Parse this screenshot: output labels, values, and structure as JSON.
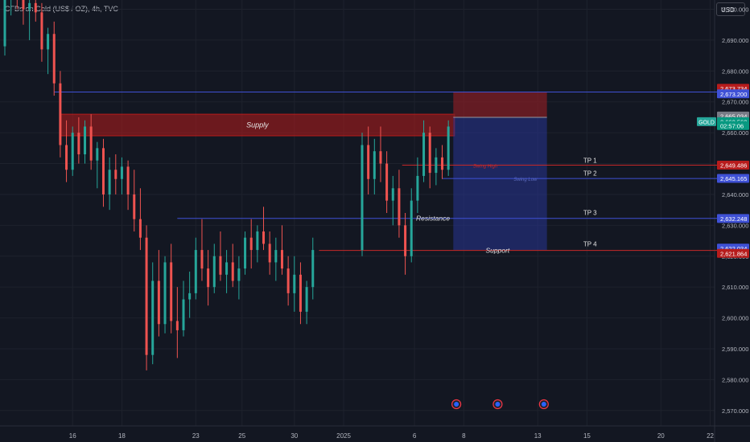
{
  "header": {
    "title": "CFDs on Gold (US$ / OZ), 4h, TVC",
    "currency_button": "USD"
  },
  "colors": {
    "background": "#131722",
    "bull": "#26a69a",
    "bear": "#ef5350",
    "supply_zone": "#b71c1c",
    "risk_zone": "#7f1d24",
    "reward_zone": "#283593",
    "blue_line": "#3f51d6",
    "red_line": "#c62828",
    "grid": "#1e222d",
    "axis_text": "#b2b5be"
  },
  "chart_data": {
    "type": "candlestick",
    "symbol": "GOLD",
    "timeframe": "4h",
    "ylim": [
      2565,
      2703
    ],
    "xlim": [
      0,
      116
    ],
    "y_ticks": [
      2570,
      2580,
      2590,
      2600,
      2610,
      2620,
      2630,
      2640,
      2650,
      2660,
      2670,
      2680,
      2690,
      2700
    ],
    "x_ticks": [
      {
        "label": "16",
        "x": 11
      },
      {
        "label": "18",
        "x": 19
      },
      {
        "label": "23",
        "x": 31
      },
      {
        "label": "25",
        "x": 38.5
      },
      {
        "label": "30",
        "x": 47
      },
      {
        "label": "2025",
        "x": 55
      },
      {
        "label": "6",
        "x": 66.5
      },
      {
        "label": "8",
        "x": 74.5
      },
      {
        "label": "13",
        "x": 86.5
      },
      {
        "label": "15",
        "x": 94.5
      },
      {
        "label": "20",
        "x": 106.5
      },
      {
        "label": "22",
        "x": 114.5
      }
    ],
    "candles": [
      [
        2688,
        2705,
        2685,
        2703
      ],
      [
        2703,
        2708,
        2698,
        2706
      ],
      [
        2706,
        2710,
        2700,
        2704
      ],
      [
        2704,
        2707,
        2695,
        2700
      ],
      [
        2700,
        2704,
        2690,
        2702
      ],
      [
        2702,
        2706,
        2696,
        2699
      ],
      [
        2699,
        2702,
        2683,
        2687
      ],
      [
        2687,
        2694,
        2679,
        2692
      ],
      [
        2692,
        2696,
        2672,
        2676
      ],
      [
        2676,
        2680,
        2652,
        2656
      ],
      [
        2656,
        2664,
        2644,
        2648
      ],
      [
        2648,
        2662,
        2646,
        2660
      ],
      [
        2660,
        2665,
        2650,
        2653
      ],
      [
        2653,
        2664,
        2650,
        2662
      ],
      [
        2662,
        2666,
        2648,
        2651
      ],
      [
        2651,
        2657,
        2642,
        2655
      ],
      [
        2655,
        2658,
        2636,
        2640
      ],
      [
        2640,
        2652,
        2635,
        2648
      ],
      [
        2648,
        2653,
        2640,
        2645
      ],
      [
        2645,
        2652,
        2640,
        2649
      ],
      [
        2649,
        2651,
        2635,
        2640
      ],
      [
        2640,
        2648,
        2628,
        2632
      ],
      [
        2632,
        2642,
        2622,
        2626
      ],
      [
        2626,
        2630,
        2583,
        2588
      ],
      [
        2588,
        2618,
        2585,
        2612
      ],
      [
        2612,
        2622,
        2594,
        2598
      ],
      [
        2598,
        2620,
        2595,
        2618
      ],
      [
        2618,
        2624,
        2595,
        2599
      ],
      [
        2599,
        2610,
        2587,
        2596
      ],
      [
        2596,
        2612,
        2594,
        2606
      ],
      [
        2606,
        2615,
        2600,
        2608
      ],
      [
        2608,
        2626,
        2606,
        2622
      ],
      [
        2622,
        2632,
        2612,
        2616
      ],
      [
        2616,
        2622,
        2604,
        2610
      ],
      [
        2610,
        2624,
        2608,
        2620
      ],
      [
        2620,
        2628,
        2612,
        2614
      ],
      [
        2614,
        2622,
        2608,
        2618
      ],
      [
        2618,
        2624,
        2610,
        2612
      ],
      [
        2612,
        2620,
        2606,
        2616
      ],
      [
        2616,
        2628,
        2614,
        2626
      ],
      [
        2626,
        2632,
        2616,
        2622
      ],
      [
        2622,
        2630,
        2618,
        2628
      ],
      [
        2628,
        2636,
        2622,
        2624
      ],
      [
        2624,
        2628,
        2614,
        2618
      ],
      [
        2618,
        2626,
        2612,
        2622
      ],
      [
        2622,
        2630,
        2614,
        2616
      ],
      [
        2616,
        2620,
        2604,
        2608
      ],
      [
        2608,
        2620,
        2602,
        2614
      ],
      [
        2614,
        2618,
        2598,
        2602
      ],
      [
        2602,
        2612,
        2598,
        2610
      ],
      [
        2610,
        2626,
        2606,
        2622
      ],
      [
        2622,
        2660,
        2620,
        2656
      ],
      [
        2656,
        2662,
        2640,
        2645
      ],
      [
        2645,
        2658,
        2640,
        2654
      ],
      [
        2654,
        2662,
        2644,
        2650
      ],
      [
        2650,
        2654,
        2634,
        2638
      ],
      [
        2638,
        2646,
        2630,
        2642
      ],
      [
        2642,
        2648,
        2626,
        2630
      ],
      [
        2630,
        2634,
        2614,
        2620
      ],
      [
        2620,
        2642,
        2618,
        2638
      ],
      [
        2638,
        2652,
        2634,
        2646
      ],
      [
        2646,
        2664,
        2644,
        2660
      ],
      [
        2660,
        2662,
        2642,
        2647
      ],
      [
        2647,
        2655,
        2643,
        2652
      ],
      [
        2652,
        2656,
        2645,
        2648
      ],
      [
        2648,
        2664,
        2646,
        2662
      ]
    ],
    "candle_x": [
      0,
      1,
      2,
      3,
      4,
      5,
      6,
      7,
      8,
      9,
      10,
      11,
      12,
      13,
      14,
      15,
      16,
      17,
      18,
      19,
      20,
      21,
      22,
      23,
      24,
      25,
      26,
      27,
      28,
      29,
      30,
      31,
      32,
      33,
      34,
      35,
      36,
      37,
      38,
      39,
      40,
      41,
      42,
      43,
      44,
      45,
      46,
      47,
      48,
      49,
      50,
      58,
      59,
      60,
      61,
      62,
      63,
      64,
      65,
      66,
      67,
      68,
      69,
      70,
      71,
      72
    ],
    "zones": [
      {
        "name": "Supply",
        "x0": 9,
        "x1": 73,
        "y0": 2659,
        "y1": 2666
      },
      {
        "name": "",
        "x0": 72.8,
        "x1": 88,
        "y0": 2665,
        "y1": 2673.2,
        "kind": "risk"
      },
      {
        "name": "",
        "x0": 72.8,
        "x1": 88,
        "y0": 2622,
        "y1": 2665,
        "kind": "reward"
      }
    ],
    "levels": [
      {
        "label": "",
        "y": 2673.2,
        "x0": 8,
        "x1": 116,
        "color": "#3f51d6"
      },
      {
        "label": "Swing High",
        "y": 2649.486,
        "x0": 64.5,
        "x1": 116,
        "color": "#c62828"
      },
      {
        "label": "Swing Low",
        "y": 2645.165,
        "x0": 71,
        "x1": 116,
        "color": "#3f51d6"
      },
      {
        "label": "Resistance",
        "y": 2632.248,
        "x0": 28,
        "x1": 116,
        "color": "#3f51d6"
      },
      {
        "label": "Support",
        "y": 2621.864,
        "x0": 51,
        "x1": 116,
        "color": "#c62828"
      }
    ],
    "tp_labels": [
      {
        "label": "TP 1",
        "y": 2650.3
      },
      {
        "label": "TP 2",
        "y": 2646.1
      },
      {
        "label": "TP 3",
        "y": 2633.4
      },
      {
        "label": "TP 4",
        "y": 2623.2
      }
    ],
    "price_tags": [
      {
        "value": "2,673.734",
        "y": 2674.4,
        "color": "#b71c1c"
      },
      {
        "value": "2,673.200",
        "y": 2672.6,
        "color": "#3f51d6"
      },
      {
        "value": "2,665.034",
        "y": 2665.4,
        "color": "#787b86"
      },
      {
        "value": "2,663.568",
        "y": 2663.6,
        "color": "#089981"
      },
      {
        "value": "02:57:06",
        "y": 2662.3,
        "color": "#089981"
      },
      {
        "value": "2,649.486",
        "y": 2649.5,
        "color": "#b71c1c"
      },
      {
        "value": "2,645.165",
        "y": 2645.2,
        "color": "#3f51d6"
      },
      {
        "value": "2,632.248",
        "y": 2632.2,
        "color": "#3f51d6"
      },
      {
        "value": "2,622.034",
        "y": 2622.6,
        "color": "#3f51d6"
      },
      {
        "value": "2,621.864",
        "y": 2620.9,
        "color": "#b71c1c"
      }
    ],
    "symbol_tag": {
      "label": "GOLD",
      "y": 2663.6
    },
    "event_icons": [
      {
        "x": 73.3
      },
      {
        "x": 80
      },
      {
        "x": 87.5
      }
    ]
  }
}
